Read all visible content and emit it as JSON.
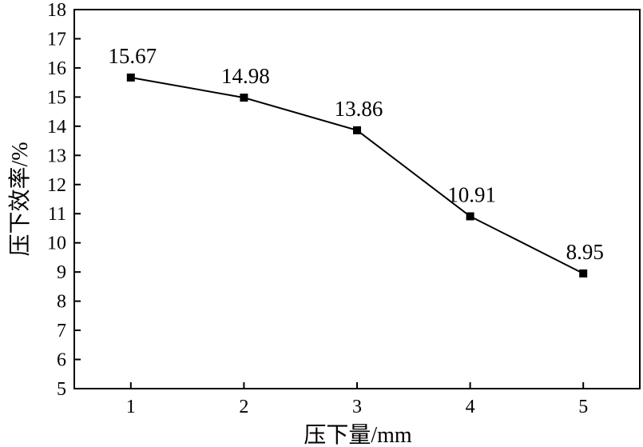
{
  "chart_data": {
    "type": "line",
    "x": [
      1,
      2,
      3,
      4,
      5
    ],
    "series": [
      {
        "values": [
          15.67,
          14.98,
          13.86,
          10.91,
          8.95
        ]
      }
    ],
    "data_labels": [
      "15.67",
      "14.98",
      "13.86",
      "10.91",
      "8.95"
    ],
    "xlabel": "压下量/mm",
    "ylabel": "压下效率/%",
    "xlim": [
      0.5,
      5.5
    ],
    "ylim": [
      5,
      18
    ],
    "x_ticks": [
      1,
      2,
      3,
      4,
      5
    ],
    "y_ticks": [
      5,
      6,
      7,
      8,
      9,
      10,
      11,
      12,
      13,
      14,
      15,
      16,
      17,
      18
    ],
    "grid": false,
    "marker": "square",
    "colors": {
      "line": "#000000",
      "marker": "#000000",
      "axis": "#000000"
    }
  }
}
